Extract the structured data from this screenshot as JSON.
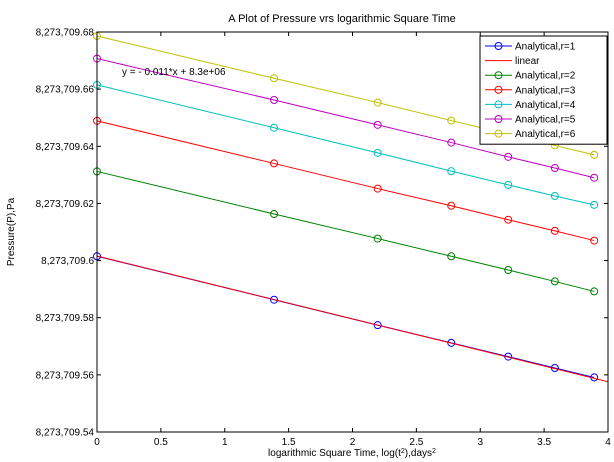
{
  "chart_data": {
    "type": "line",
    "title": "A Plot of Pressure vrs logarithmic Square Time",
    "xlabel_prefix": "logarithmic Square Time, log(t",
    "xlabel_sup1": "2",
    "xlabel_mid": "),days",
    "xlabel_sup2": "2",
    "ylabel": "Pressure(P),Pa",
    "xlim": [
      0,
      4
    ],
    "ylim": [
      8273709.54,
      8273709.68
    ],
    "xticks": [
      0,
      0.5,
      1,
      1.5,
      2,
      2.5,
      3,
      3.5,
      4
    ],
    "xtick_labels": [
      "0",
      "0.5",
      "1",
      "1.5",
      "2",
      "2.5",
      "3",
      "3.5",
      "4"
    ],
    "yticks": [
      8273709.54,
      8273709.56,
      8273709.58,
      8273709.6,
      8273709.62,
      8273709.64,
      8273709.66,
      8273709.68
    ],
    "ytick_labels": [
      "8,273,709.54",
      "8,273,709.56",
      "8,273,709.58",
      "8,273,709.6",
      "8,273,709.62",
      "8,273,709.64",
      "8,273,709.66",
      "8,273,709.68"
    ],
    "grid": false,
    "legend_position": "top-right",
    "annotation": "y = - 0.011*x + 8.3e+06",
    "series": [
      {
        "name": "Analytical,r=1",
        "color": "#0000ff",
        "marker": "circle",
        "x": [
          0,
          1.386,
          2.197,
          2.773,
          3.219,
          3.584,
          3.892
        ],
        "y": [
          8273709.6015,
          8273709.5863,
          8273709.5774,
          8273709.5712,
          8273709.5664,
          8273709.5624,
          8273709.5591
        ]
      },
      {
        "name": "linear",
        "color": "#ff0000",
        "marker": "none",
        "x": [
          0,
          4
        ],
        "y": [
          8273709.6016,
          8273709.5576
        ]
      },
      {
        "name": "Analytical,r=2",
        "color": "#008000",
        "marker": "circle",
        "x": [
          0,
          1.386,
          2.197,
          2.773,
          3.219,
          3.584,
          3.892
        ],
        "y": [
          8273709.6312,
          8273709.6163,
          8273709.6077,
          8273709.6015,
          8273709.5967,
          8273709.5927,
          8273709.5892
        ]
      },
      {
        "name": "Analytical,r=3",
        "color": "#ff0000",
        "marker": "circle",
        "x": [
          0,
          1.386,
          2.197,
          2.773,
          3.219,
          3.584,
          3.892
        ],
        "y": [
          8273709.6489,
          8273709.634,
          8273709.6252,
          8273709.6192,
          8273709.6143,
          8273709.6104,
          8273709.607
        ]
      },
      {
        "name": "Analytical,r=4",
        "color": "#00bfbf",
        "marker": "circle",
        "x": [
          0,
          1.386,
          2.197,
          2.773,
          3.219,
          3.584,
          3.892
        ],
        "y": [
          8273709.6615,
          8273709.6465,
          8273709.6377,
          8273709.6313,
          8273709.6265,
          8273709.6226,
          8273709.6195
        ]
      },
      {
        "name": "Analytical,r=5",
        "color": "#bf00bf",
        "marker": "circle",
        "x": [
          0,
          1.386,
          2.197,
          2.773,
          3.219,
          3.584,
          3.892
        ],
        "y": [
          8273709.6707,
          8273709.6562,
          8273709.6475,
          8273709.6413,
          8273709.6363,
          8273709.6324,
          8273709.629
        ]
      },
      {
        "name": "Analytical,r=6",
        "color": "#bfbf00",
        "marker": "circle",
        "x": [
          0,
          1.386,
          2.197,
          2.773,
          3.219,
          3.584,
          3.892
        ],
        "y": [
          8273709.6786,
          8273709.6638,
          8273709.6553,
          8273709.649,
          8273709.6442,
          8273709.6403,
          8273709.637
        ]
      }
    ]
  }
}
